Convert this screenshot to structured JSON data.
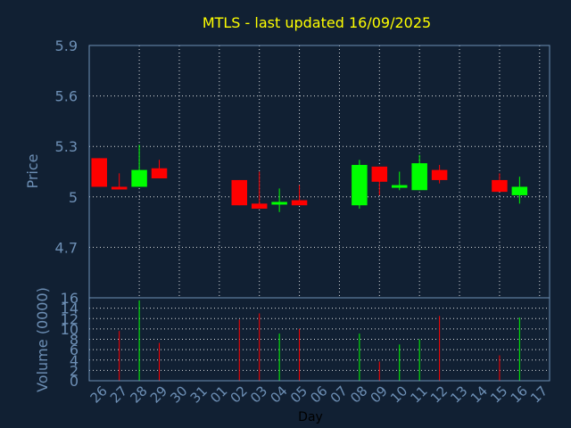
{
  "chart_data": {
    "type": "candlestick",
    "title": "MTLS - last updated 16/09/2025",
    "xlabel": "Day",
    "price_panel": {
      "ylabel": "Price",
      "yticks": [
        "5.9",
        "5.6",
        "5.3",
        "5",
        "4.7"
      ],
      "ylim": [
        4.4,
        5.9
      ],
      "grid": true
    },
    "volume_panel": {
      "ylabel": "Volume (0000)",
      "yticks": [
        "16",
        "14",
        "12",
        "10",
        "8",
        "6",
        "4",
        "2",
        "0"
      ],
      "ylim": [
        0,
        16
      ],
      "grid": true
    },
    "x_ticks": [
      "26",
      "27",
      "28",
      "29",
      "30",
      "31",
      "01",
      "02",
      "03",
      "04",
      "05",
      "06",
      "07",
      "08",
      "09",
      "10",
      "11",
      "12",
      "13",
      "14",
      "15",
      "16",
      "17"
    ],
    "candles": [
      {
        "day": "26",
        "open": 5.23,
        "close": 5.06,
        "high": 5.23,
        "low": 5.06,
        "volume": 0
      },
      {
        "day": "27",
        "open": 5.06,
        "close": 5.05,
        "high": 5.14,
        "low": 5.05,
        "volume": 9.6
      },
      {
        "day": "28",
        "open": 5.06,
        "close": 5.16,
        "high": 5.31,
        "low": 5.06,
        "volume": 15.5
      },
      {
        "day": "29",
        "open": 5.17,
        "close": 5.11,
        "high": 5.22,
        "low": 5.11,
        "volume": 7.3
      },
      {
        "day": "02",
        "open": 5.1,
        "close": 4.95,
        "high": 5.1,
        "low": 4.95,
        "volume": 11.8
      },
      {
        "day": "03",
        "open": 4.96,
        "close": 4.93,
        "high": 5.15,
        "low": 4.93,
        "volume": 13.0
      },
      {
        "day": "04",
        "open": 4.96,
        "close": 4.97,
        "high": 5.05,
        "low": 4.91,
        "volume": 9.1
      },
      {
        "day": "05",
        "open": 4.98,
        "close": 4.95,
        "high": 5.07,
        "low": 4.95,
        "volume": 10.0
      },
      {
        "day": "08",
        "open": 4.95,
        "close": 5.19,
        "high": 5.22,
        "low": 4.93,
        "volume": 9.1
      },
      {
        "day": "09",
        "open": 5.18,
        "close": 5.09,
        "high": 5.18,
        "low": 5.01,
        "volume": 3.7
      },
      {
        "day": "10",
        "open": 5.06,
        "close": 5.07,
        "high": 5.15,
        "low": 5.04,
        "volume": 7.0
      },
      {
        "day": "11",
        "open": 5.04,
        "close": 5.2,
        "high": 5.25,
        "low": 5.04,
        "volume": 8.0
      },
      {
        "day": "12",
        "open": 5.16,
        "close": 5.1,
        "high": 5.19,
        "low": 5.08,
        "volume": 12.5
      },
      {
        "day": "15",
        "open": 5.1,
        "close": 5.03,
        "high": 5.14,
        "low": 5.03,
        "volume": 4.9
      },
      {
        "day": "16",
        "open": 5.01,
        "close": 5.06,
        "high": 5.12,
        "low": 4.96,
        "volume": 12.2
      }
    ],
    "colors": {
      "up": "#00ff00",
      "down": "#ff0000",
      "text": "#6d8fb5",
      "title": "#ffff00",
      "background": "#112033"
    }
  }
}
